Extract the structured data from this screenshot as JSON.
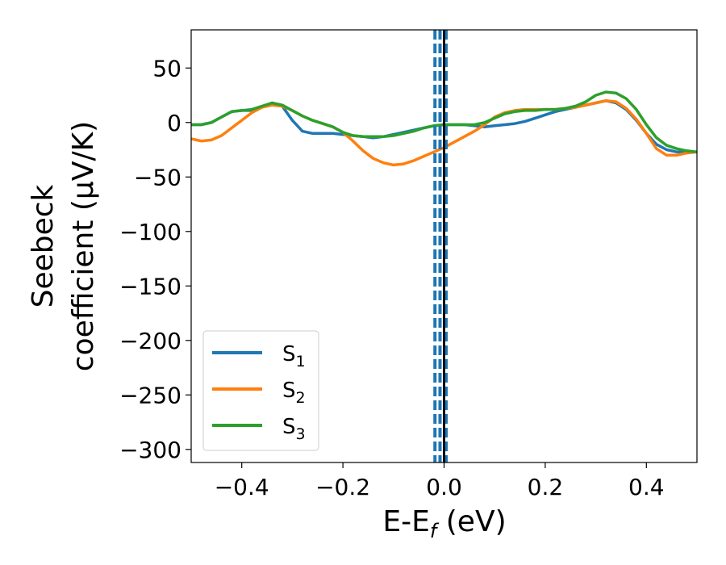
{
  "chart_data": {
    "type": "line",
    "xlabel": "E-E",
    "xlabel_sub": "f",
    "xlabel_unit": " (eV)",
    "ylabel_line1": "Seebeck",
    "ylabel_line2": "coefficient  (μV/K)",
    "xlim": [
      -0.5,
      0.5
    ],
    "ylim": [
      -312,
      85
    ],
    "xticks": [
      -0.4,
      -0.2,
      0.0,
      0.2,
      0.4
    ],
    "xtick_labels": [
      "−0.4",
      "−0.2",
      "0.0",
      "0.2",
      "0.4"
    ],
    "yticks": [
      50,
      0,
      -50,
      -100,
      -150,
      -200,
      -250,
      -300
    ],
    "ytick_labels": [
      "50",
      "0",
      "−50",
      "−100",
      "−150",
      "−200",
      "−250",
      "−300"
    ],
    "legend_placement": "lower-left",
    "grid": false,
    "vlines": [
      {
        "x": -0.018,
        "color": "#1f77b4",
        "style": "dashed"
      },
      {
        "x": -0.008,
        "color": "#1f77b4",
        "style": "dashed"
      },
      {
        "x": 0.004,
        "color": "#1f77b4",
        "style": "dashed"
      },
      {
        "x": 0.0,
        "color": "#000000",
        "style": "solid"
      }
    ],
    "series": [
      {
        "name": "S",
        "sub": "1",
        "color": "#1f77b4",
        "x": [
          -0.5,
          -0.48,
          -0.46,
          -0.44,
          -0.42,
          -0.4,
          -0.38,
          -0.36,
          -0.34,
          -0.32,
          -0.3,
          -0.28,
          -0.26,
          -0.24,
          -0.22,
          -0.2,
          -0.18,
          -0.16,
          -0.14,
          -0.12,
          -0.1,
          -0.08,
          -0.06,
          -0.04,
          -0.02,
          0.0,
          0.02,
          0.04,
          0.06,
          0.08,
          0.1,
          0.12,
          0.14,
          0.16,
          0.18,
          0.2,
          0.22,
          0.24,
          0.26,
          0.28,
          0.3,
          0.32,
          0.34,
          0.36,
          0.38,
          0.4,
          0.42,
          0.44,
          0.46,
          0.48,
          0.5
        ],
        "y": [
          -2,
          -2,
          0,
          5,
          10,
          11,
          11,
          14,
          18,
          15,
          2,
          -8,
          -10,
          -10,
          -10,
          -11,
          -12,
          -13,
          -14,
          -13,
          -11,
          -9,
          -7,
          -5,
          -3,
          -2,
          -2,
          -2,
          -3,
          -4,
          -3,
          -2,
          -1,
          1,
          4,
          7,
          10,
          12,
          14,
          16,
          18,
          20,
          18,
          12,
          2,
          -10,
          -20,
          -25,
          -27,
          -27,
          -27
        ]
      },
      {
        "name": "S",
        "sub": "2",
        "color": "#ff7f0e",
        "x": [
          -0.5,
          -0.48,
          -0.46,
          -0.44,
          -0.42,
          -0.4,
          -0.38,
          -0.36,
          -0.34,
          -0.32,
          -0.3,
          -0.28,
          -0.26,
          -0.24,
          -0.22,
          -0.2,
          -0.18,
          -0.16,
          -0.14,
          -0.12,
          -0.1,
          -0.08,
          -0.06,
          -0.04,
          -0.02,
          0.0,
          0.02,
          0.04,
          0.06,
          0.08,
          0.1,
          0.12,
          0.14,
          0.16,
          0.18,
          0.2,
          0.22,
          0.24,
          0.26,
          0.28,
          0.3,
          0.32,
          0.34,
          0.36,
          0.38,
          0.4,
          0.42,
          0.44,
          0.46,
          0.48,
          0.5
        ],
        "y": [
          -15,
          -17,
          -16,
          -12,
          -5,
          2,
          9,
          14,
          16,
          15,
          11,
          6,
          2,
          -1,
          -4,
          -9,
          -17,
          -26,
          -33,
          -37,
          -39,
          -38,
          -35,
          -31,
          -27,
          -23,
          -18,
          -13,
          -8,
          -2,
          5,
          9,
          11,
          12,
          12,
          12,
          12,
          13,
          14,
          16,
          18,
          20,
          19,
          13,
          3,
          -10,
          -24,
          -30,
          -30,
          -28,
          -27
        ]
      },
      {
        "name": "S",
        "sub": "3",
        "color": "#2ca02c",
        "x": [
          -0.5,
          -0.48,
          -0.46,
          -0.44,
          -0.42,
          -0.4,
          -0.38,
          -0.36,
          -0.34,
          -0.32,
          -0.3,
          -0.28,
          -0.26,
          -0.24,
          -0.22,
          -0.2,
          -0.18,
          -0.16,
          -0.14,
          -0.12,
          -0.1,
          -0.08,
          -0.06,
          -0.04,
          -0.02,
          0.0,
          0.02,
          0.04,
          0.06,
          0.08,
          0.1,
          0.12,
          0.14,
          0.16,
          0.18,
          0.2,
          0.22,
          0.24,
          0.26,
          0.28,
          0.3,
          0.32,
          0.34,
          0.36,
          0.38,
          0.4,
          0.42,
          0.44,
          0.46,
          0.48,
          0.5
        ],
        "y": [
          -2,
          -2,
          0,
          5,
          10,
          11,
          12,
          15,
          18,
          16,
          11,
          6,
          2,
          -1,
          -4,
          -9,
          -12,
          -13,
          -13,
          -13,
          -12,
          -10,
          -8,
          -5,
          -3,
          -2,
          -2,
          -2,
          -2,
          0,
          4,
          8,
          10,
          11,
          11,
          12,
          12,
          13,
          15,
          19,
          25,
          28,
          27,
          22,
          12,
          -2,
          -14,
          -21,
          -24,
          -26,
          -27
        ]
      }
    ]
  }
}
